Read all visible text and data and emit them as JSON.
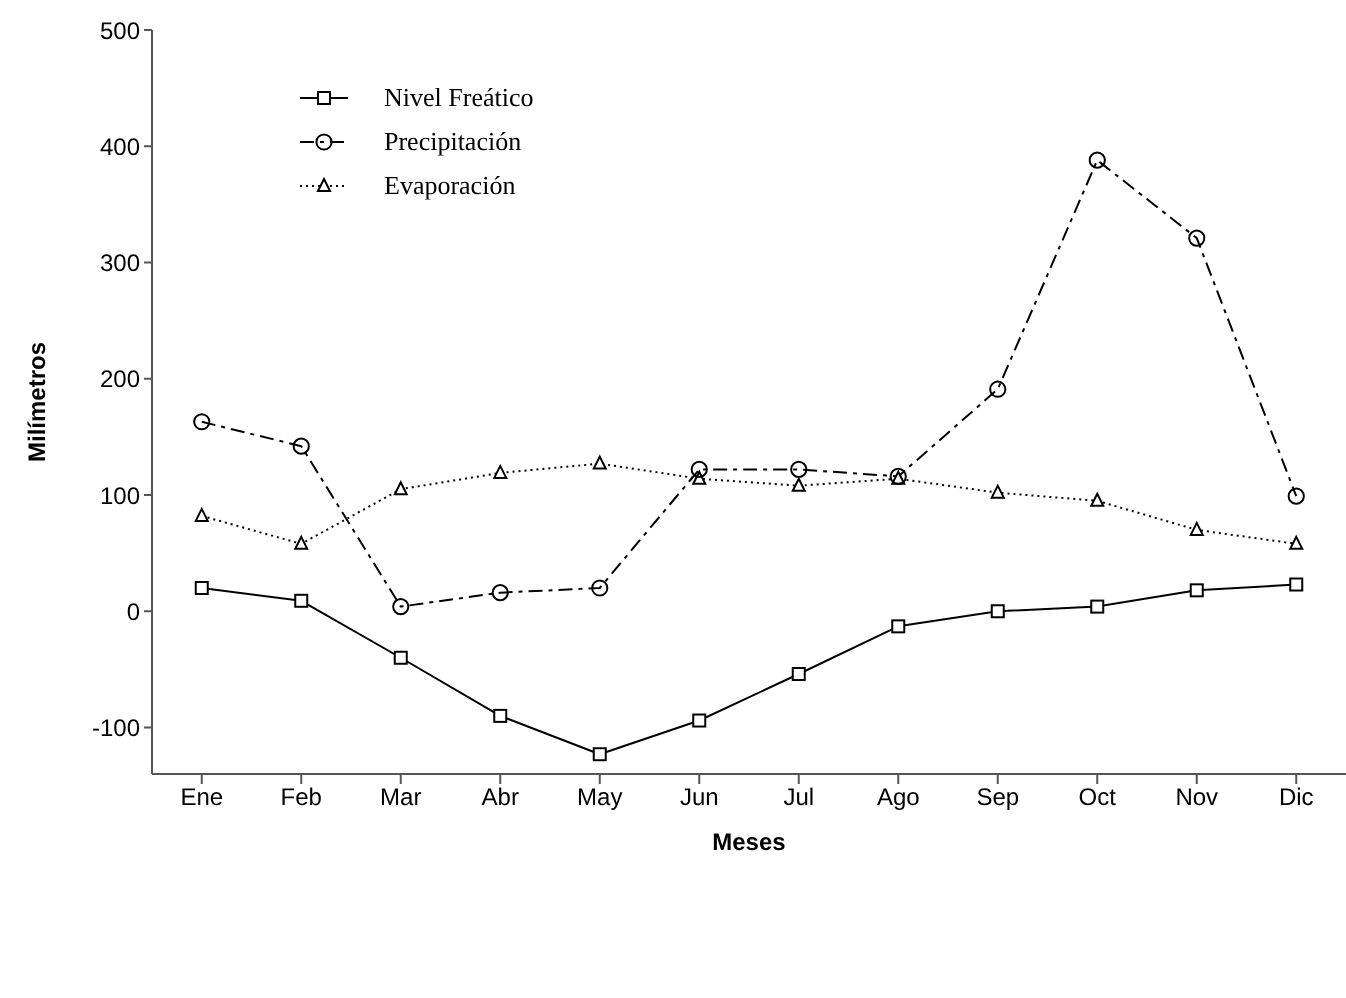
{
  "chart_data": {
    "type": "line",
    "xlabel": "Meses",
    "ylabel": "Milímetros",
    "categories": [
      "Ene",
      "Feb",
      "Mar",
      "Abr",
      "May",
      "Jun",
      "Jul",
      "Ago",
      "Sep",
      "Oct",
      "Nov",
      "Dic"
    ],
    "ylim": [
      -140,
      500
    ],
    "yticks": [
      -100,
      0,
      100,
      200,
      300,
      400,
      500
    ],
    "grid": false,
    "legend": "top left",
    "series": [
      {
        "name": "Nivel Freático",
        "color": "#000000",
        "marker": "square",
        "line_style": "solid",
        "values": [
          20,
          9,
          -40,
          -90,
          -123,
          -94,
          -54,
          -13,
          0,
          4,
          18,
          23
        ]
      },
      {
        "name": "Precipitación",
        "color": "#000000",
        "marker": "circle",
        "line_style": "dashed",
        "values": [
          163,
          142,
          4,
          16,
          20,
          122,
          122,
          116,
          191,
          388,
          321,
          99
        ]
      },
      {
        "name": "Evaporación",
        "color": "#000000",
        "marker": "triangle",
        "line_style": "dotted",
        "values": [
          82,
          58,
          105,
          119,
          127,
          114,
          108,
          114,
          102,
          95,
          70,
          58
        ]
      }
    ]
  }
}
